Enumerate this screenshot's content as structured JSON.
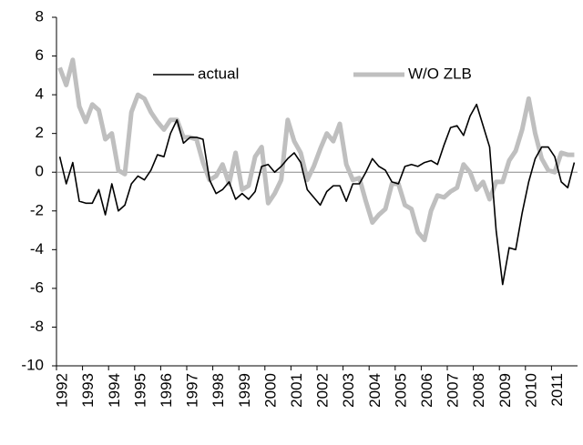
{
  "chart_data": {
    "type": "line",
    "categories": [
      "1992",
      null,
      null,
      null,
      "1993",
      null,
      null,
      null,
      "1994",
      null,
      null,
      null,
      "1995",
      null,
      null,
      null,
      "1996",
      null,
      null,
      null,
      "1997",
      null,
      null,
      null,
      "1998",
      null,
      null,
      null,
      "1999",
      null,
      null,
      null,
      "2000",
      null,
      null,
      null,
      "2001",
      null,
      null,
      null,
      "2002",
      null,
      null,
      null,
      "2003",
      null,
      null,
      null,
      "2004",
      null,
      null,
      null,
      "2005",
      null,
      null,
      null,
      "2006",
      null,
      null,
      null,
      "2007",
      null,
      null,
      null,
      "2008",
      null,
      null,
      null,
      "2009",
      null,
      null,
      null,
      "2010",
      null,
      null,
      null,
      "2011",
      null,
      null,
      null
    ],
    "series": [
      {
        "name": "actual",
        "color": "#000000",
        "width": 1.6,
        "values": [
          0.8,
          -0.6,
          0.5,
          -1.5,
          -1.6,
          -1.6,
          -0.9,
          -2.2,
          -0.6,
          -2.0,
          -1.7,
          -0.6,
          -0.2,
          -0.4,
          0.1,
          0.9,
          0.8,
          2.0,
          2.7,
          1.5,
          1.8,
          1.8,
          1.7,
          -0.4,
          -1.1,
          -0.9,
          -0.5,
          -1.4,
          -1.1,
          -1.4,
          -1.0,
          0.3,
          0.4,
          0.0,
          0.3,
          0.7,
          1.0,
          0.5,
          -0.9,
          -1.3,
          -1.7,
          -1.0,
          -0.7,
          -0.7,
          -1.5,
          -0.6,
          -0.6,
          0.0,
          0.7,
          0.3,
          0.1,
          -0.5,
          -0.6,
          0.3,
          0.4,
          0.3,
          0.5,
          0.6,
          0.4,
          1.4,
          2.3,
          2.4,
          1.9,
          2.9,
          3.5,
          2.4,
          1.3,
          -3.0,
          -5.8,
          -3.9,
          -4.0,
          -2.1,
          -0.5,
          0.7,
          1.3,
          1.3,
          0.8,
          -0.5,
          -0.8,
          0.5
        ]
      },
      {
        "name": "W/O ZLB",
        "color": "#bfbfbf",
        "width": 5,
        "values": [
          5.4,
          4.5,
          5.8,
          3.4,
          2.6,
          3.5,
          3.2,
          1.7,
          2.0,
          0.1,
          -0.1,
          3.1,
          4.0,
          3.8,
          3.1,
          2.6,
          2.2,
          2.7,
          2.7,
          1.8,
          1.8,
          1.7,
          0.5,
          -0.4,
          -0.2,
          0.4,
          -0.6,
          1.0,
          -0.9,
          -0.7,
          0.8,
          1.3,
          -1.6,
          -1.1,
          -0.4,
          2.7,
          1.6,
          1.0,
          -0.4,
          0.3,
          1.2,
          2.0,
          1.6,
          2.5,
          0.4,
          -0.4,
          -0.3,
          -1.5,
          -2.6,
          -2.2,
          -1.9,
          -0.6,
          -0.6,
          -1.7,
          -1.9,
          -3.1,
          -3.5,
          -2.0,
          -1.2,
          -1.3,
          -1.0,
          -0.8,
          0.4,
          0.0,
          -0.9,
          -0.5,
          -1.4,
          -0.5,
          -0.5,
          0.6,
          1.1,
          2.2,
          3.8,
          2.0,
          0.7,
          0.1,
          0.0,
          1.0,
          0.9,
          0.9
        ]
      }
    ],
    "ylim": [
      -10,
      8
    ],
    "yticks": [
      -10,
      -8,
      -6,
      -4,
      -2,
      0,
      2,
      4,
      6,
      8
    ],
    "grid": false,
    "legend": "top"
  }
}
